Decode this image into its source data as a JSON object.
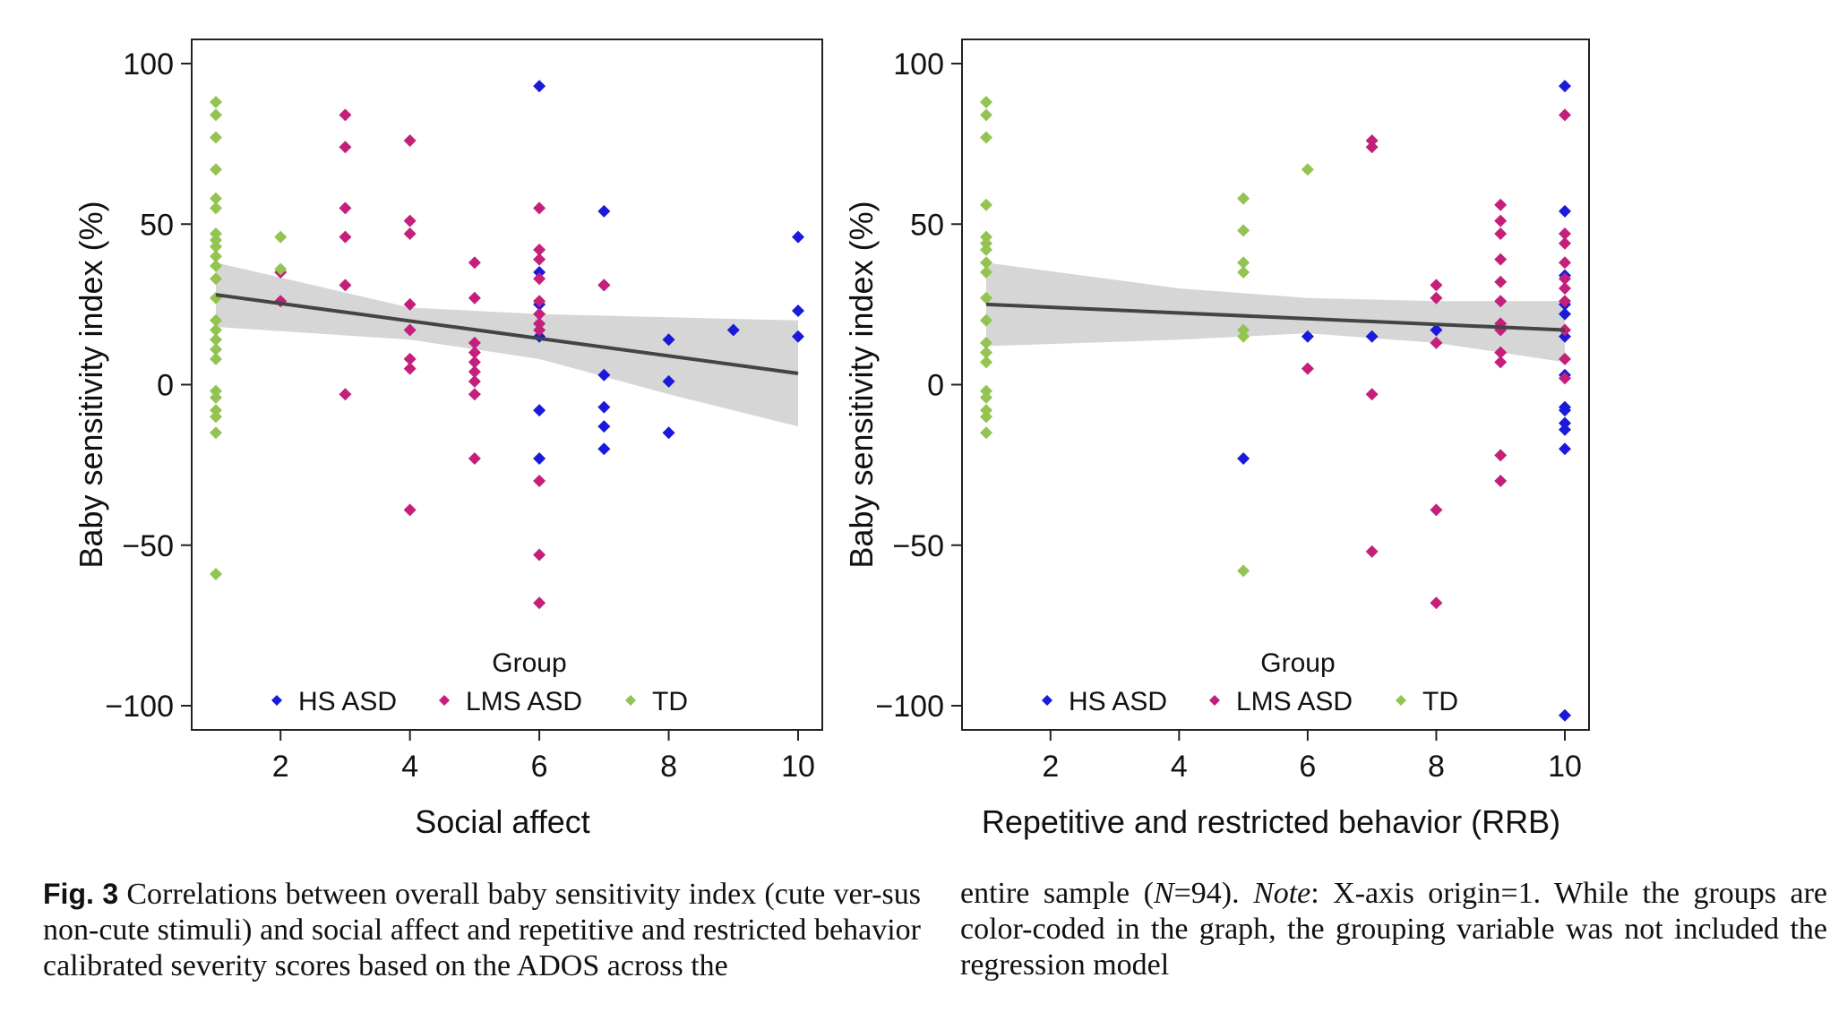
{
  "chart_data": [
    {
      "type": "scatter",
      "id": "social",
      "xlabel": "Social affect",
      "ylabel": "Baby sensitivity index (%)",
      "xlim": [
        1,
        10
      ],
      "ylim": [
        -100,
        100
      ],
      "xticks": [
        2,
        4,
        6,
        8,
        10
      ],
      "yticks": [
        -100,
        -50,
        0,
        50,
        100
      ],
      "regression": {
        "x": [
          1,
          10
        ],
        "y": [
          28,
          3.5
        ]
      },
      "confidence_band": {
        "x": [
          1,
          4,
          6,
          8,
          10
        ],
        "upper": [
          38,
          24,
          22,
          21,
          20
        ],
        "lower": [
          18,
          14,
          8,
          -3,
          -13
        ]
      },
      "legend": {
        "title": "Group",
        "position": "bottom-center",
        "entries": [
          "HS ASD",
          "LMS ASD",
          "TD"
        ]
      },
      "series": [
        {
          "name": "HS ASD",
          "color": "#1a1adb",
          "points": [
            [
              6,
              93
            ],
            [
              6,
              35
            ],
            [
              6,
              25
            ],
            [
              6,
              15
            ],
            [
              6,
              -8
            ],
            [
              6,
              -23
            ],
            [
              7,
              54
            ],
            [
              7,
              31
            ],
            [
              7,
              3
            ],
            [
              7,
              -7
            ],
            [
              7,
              -13
            ],
            [
              7,
              -20
            ],
            [
              8,
              14
            ],
            [
              8,
              1
            ],
            [
              8,
              -15
            ],
            [
              9,
              17
            ],
            [
              10,
              46
            ],
            [
              10,
              23
            ],
            [
              10,
              15
            ]
          ]
        },
        {
          "name": "LMS ASD",
          "color": "#c41f7a",
          "points": [
            [
              2,
              35
            ],
            [
              2,
              26
            ],
            [
              3,
              84
            ],
            [
              3,
              74
            ],
            [
              3,
              55
            ],
            [
              3,
              46
            ],
            [
              3,
              31
            ],
            [
              3,
              -3
            ],
            [
              4,
              76
            ],
            [
              4,
              51
            ],
            [
              4,
              47
            ],
            [
              4,
              25
            ],
            [
              4,
              17
            ],
            [
              4,
              8
            ],
            [
              4,
              5
            ],
            [
              4,
              -39
            ],
            [
              5,
              38
            ],
            [
              5,
              27
            ],
            [
              5,
              13
            ],
            [
              5,
              10
            ],
            [
              5,
              7
            ],
            [
              5,
              4
            ],
            [
              5,
              1
            ],
            [
              5,
              -3
            ],
            [
              5,
              -23
            ],
            [
              6,
              55
            ],
            [
              6,
              42
            ],
            [
              6,
              39
            ],
            [
              6,
              33
            ],
            [
              6,
              26
            ],
            [
              6,
              22
            ],
            [
              6,
              19
            ],
            [
              6,
              17
            ],
            [
              6,
              -30
            ],
            [
              6,
              -53
            ],
            [
              6,
              -68
            ],
            [
              7,
              31
            ]
          ]
        },
        {
          "name": "TD",
          "color": "#93c452",
          "points": [
            [
              1,
              88
            ],
            [
              1,
              84
            ],
            [
              1,
              77
            ],
            [
              1,
              67
            ],
            [
              1,
              58
            ],
            [
              1,
              55
            ],
            [
              1,
              47
            ],
            [
              1,
              45
            ],
            [
              1,
              43
            ],
            [
              1,
              40
            ],
            [
              1,
              37
            ],
            [
              1,
              33
            ],
            [
              1,
              27
            ],
            [
              1,
              20
            ],
            [
              1,
              17
            ],
            [
              1,
              14
            ],
            [
              1,
              11
            ],
            [
              1,
              8
            ],
            [
              1,
              -2
            ],
            [
              1,
              -4
            ],
            [
              1,
              -8
            ],
            [
              1,
              -10
            ],
            [
              1,
              -15
            ],
            [
              1,
              -59
            ],
            [
              2,
              46
            ],
            [
              2,
              36
            ]
          ]
        }
      ]
    },
    {
      "type": "scatter",
      "id": "rrb",
      "xlabel": "Repetitive and restricted behavior (RRB)",
      "ylabel": "Baby sensitivity index (%)",
      "xlim": [
        1,
        10
      ],
      "ylim": [
        -100,
        100
      ],
      "xticks": [
        2,
        4,
        6,
        8,
        10
      ],
      "yticks": [
        -100,
        -50,
        0,
        50,
        100
      ],
      "regression": {
        "x": [
          1,
          10
        ],
        "y": [
          25,
          17
        ]
      },
      "confidence_band": {
        "x": [
          1,
          4,
          6,
          8,
          10
        ],
        "upper": [
          38,
          30,
          27,
          26,
          26
        ],
        "lower": [
          12,
          14,
          16,
          13,
          7
        ]
      },
      "legend": {
        "title": "Group",
        "position": "bottom-center",
        "entries": [
          "HS ASD",
          "LMS ASD",
          "TD"
        ]
      },
      "series": [
        {
          "name": "HS ASD",
          "color": "#1a1adb",
          "points": [
            [
              5,
              -23
            ],
            [
              6,
              15
            ],
            [
              7,
              15
            ],
            [
              8,
              17
            ],
            [
              10,
              93
            ],
            [
              10,
              54
            ],
            [
              10,
              34
            ],
            [
              10,
              25
            ],
            [
              10,
              22
            ],
            [
              10,
              15
            ],
            [
              10,
              3
            ],
            [
              10,
              -7
            ],
            [
              10,
              -8
            ],
            [
              10,
              -12
            ],
            [
              10,
              -14
            ],
            [
              10,
              -20
            ],
            [
              10,
              -103
            ]
          ]
        },
        {
          "name": "LMS ASD",
          "color": "#c41f7a",
          "points": [
            [
              6,
              5
            ],
            [
              7,
              76
            ],
            [
              7,
              74
            ],
            [
              7,
              -3
            ],
            [
              7,
              -52
            ],
            [
              8,
              31
            ],
            [
              8,
              27
            ],
            [
              8,
              13
            ],
            [
              8,
              -39
            ],
            [
              8,
              -68
            ],
            [
              9,
              56
            ],
            [
              9,
              51
            ],
            [
              9,
              47
            ],
            [
              9,
              39
            ],
            [
              9,
              32
            ],
            [
              9,
              26
            ],
            [
              9,
              19
            ],
            [
              9,
              17
            ],
            [
              9,
              10
            ],
            [
              9,
              7
            ],
            [
              9,
              -22
            ],
            [
              9,
              -30
            ],
            [
              10,
              84
            ],
            [
              10,
              47
            ],
            [
              10,
              44
            ],
            [
              10,
              38
            ],
            [
              10,
              33
            ],
            [
              10,
              30
            ],
            [
              10,
              26
            ],
            [
              10,
              17
            ],
            [
              10,
              8
            ],
            [
              10,
              2
            ]
          ]
        },
        {
          "name": "TD",
          "color": "#93c452",
          "points": [
            [
              1,
              88
            ],
            [
              1,
              84
            ],
            [
              1,
              77
            ],
            [
              1,
              56
            ],
            [
              1,
              46
            ],
            [
              1,
              44
            ],
            [
              1,
              42
            ],
            [
              1,
              38
            ],
            [
              1,
              35
            ],
            [
              1,
              27
            ],
            [
              1,
              20
            ],
            [
              1,
              13
            ],
            [
              1,
              10
            ],
            [
              1,
              7
            ],
            [
              1,
              -2
            ],
            [
              1,
              -4
            ],
            [
              1,
              -8
            ],
            [
              1,
              -10
            ],
            [
              1,
              -15
            ],
            [
              5,
              58
            ],
            [
              5,
              48
            ],
            [
              5,
              38
            ],
            [
              5,
              35
            ],
            [
              5,
              17
            ],
            [
              5,
              15
            ],
            [
              5,
              -58
            ],
            [
              6,
              67
            ]
          ]
        }
      ]
    }
  ],
  "caption": {
    "label": "Fig. 3",
    "left_text": "Correlations between overall baby sensitivity index (cute ver-sus non-cute stimuli) and social affect and repetitive and restricted behavior calibrated severity scores based on the ADOS across the",
    "right_pre": "entire sample (",
    "right_n": "N",
    "right_eq": "=94). ",
    "right_note": "Note",
    "right_post": ": X-axis origin=1. While the groups are color-coded in the graph, the grouping variable was not included the regression model"
  }
}
